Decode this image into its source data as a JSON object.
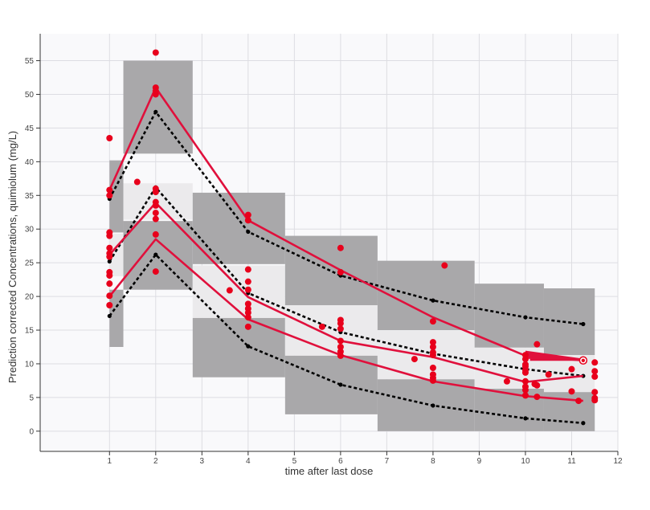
{
  "chart_data": {
    "type": "scatter",
    "xlabel": "time after last dose",
    "ylabel": "Prediction corrected Concentrations, quimiolum (mg/L)",
    "xlim": [
      -0.5,
      12
    ],
    "ylim": [
      -3,
      59
    ],
    "x_ticks": [
      1,
      2,
      3,
      4,
      5,
      6,
      7,
      8,
      9,
      10,
      11,
      12
    ],
    "y_ticks": [
      0,
      5,
      10,
      15,
      20,
      25,
      30,
      35,
      40,
      45,
      50,
      55
    ],
    "grid": true,
    "colors": {
      "observed": "#e8001c",
      "percentile_line": "#e0103c",
      "prediction_line": "#000000",
      "outer_band": "#a9a8aa",
      "median_band": "#ebeaec",
      "plot_background": "#f9f9fb"
    },
    "bands": [
      {
        "x0": 1,
        "x1": 1.3,
        "outer_upper": [
          29.5,
          40.2
        ],
        "median": [
          23.0,
          29.3
        ],
        "outer_lower": [
          12.5,
          21.0
        ]
      },
      {
        "x0": 1.3,
        "x1": 2.8,
        "outer_upper": [
          41.2,
          55.0
        ],
        "median": [
          31.4,
          36.8
        ],
        "outer_lower": [
          21.0,
          31.2
        ]
      },
      {
        "x0": 2.8,
        "x1": 4.8,
        "outer_upper": [
          24.8,
          35.4
        ],
        "median": [
          16.8,
          24.6
        ],
        "outer_lower": [
          8.0,
          16.8
        ]
      },
      {
        "x0": 4.8,
        "x1": 6.8,
        "outer_upper": [
          18.7,
          29.0
        ],
        "median": [
          11.2,
          18.7
        ],
        "outer_lower": [
          2.5,
          11.2
        ]
      },
      {
        "x0": 6.8,
        "x1": 8.9,
        "outer_upper": [
          15.0,
          25.3
        ],
        "median": [
          7.7,
          15.0
        ],
        "outer_lower": [
          0.0,
          7.7
        ]
      },
      {
        "x0": 8.9,
        "x1": 10.4,
        "outer_upper": [
          12.4,
          21.9
        ],
        "median": [
          6.3,
          12.4
        ],
        "outer_lower": [
          0.0,
          6.3
        ]
      },
      {
        "x0": 10.4,
        "x1": 11.5,
        "outer_upper": [
          11.3,
          21.2
        ],
        "median": [
          5.8,
          11.3
        ],
        "outer_lower": [
          0.0,
          5.8
        ]
      }
    ],
    "prediction_x": [
      1,
      2,
      4,
      6,
      8,
      10,
      11.25
    ],
    "prediction_upper": [
      34.5,
      47.4,
      29.6,
      23.1,
      19.4,
      16.9,
      15.9
    ],
    "prediction_median": [
      25.2,
      36.2,
      20.5,
      14.7,
      11.5,
      9.2,
      8.2
    ],
    "prediction_lower": [
      17.1,
      26.2,
      12.6,
      6.9,
      3.8,
      1.9,
      1.2
    ],
    "observed_x": [
      1,
      2,
      4,
      6,
      8,
      10,
      11.25
    ],
    "observed_upper": [
      35.8,
      51.0,
      31.3,
      23.9,
      16.9,
      11.2,
      10.5
    ],
    "observed_median": [
      26.2,
      33.9,
      19.9,
      13.4,
      11.0,
      7.3,
      8.2
    ],
    "observed_lower": [
      20.0,
      28.5,
      16.6,
      11.3,
      7.4,
      5.2,
      4.5
    ],
    "observations": [
      {
        "x": 1.0,
        "y": 43.5
      },
      {
        "x": 1.0,
        "y": 35.8
      },
      {
        "x": 1.0,
        "y": 35.0
      },
      {
        "x": 1.0,
        "y": 29.5
      },
      {
        "x": 1.0,
        "y": 29.0
      },
      {
        "x": 1.0,
        "y": 27.2
      },
      {
        "x": 1.0,
        "y": 26.4
      },
      {
        "x": 1.0,
        "y": 25.9
      },
      {
        "x": 1.0,
        "y": 23.6
      },
      {
        "x": 1.0,
        "y": 23.1
      },
      {
        "x": 1.0,
        "y": 21.9
      },
      {
        "x": 1.0,
        "y": 20.1
      },
      {
        "x": 1.0,
        "y": 18.7
      },
      {
        "x": 1.6,
        "y": 37.0
      },
      {
        "x": 2.0,
        "y": 56.2
      },
      {
        "x": 2.0,
        "y": 51.0
      },
      {
        "x": 2.0,
        "y": 50.5
      },
      {
        "x": 2.0,
        "y": 50.0
      },
      {
        "x": 2.0,
        "y": 36.0
      },
      {
        "x": 2.0,
        "y": 35.5
      },
      {
        "x": 2.0,
        "y": 34.0
      },
      {
        "x": 2.0,
        "y": 33.5
      },
      {
        "x": 2.0,
        "y": 32.4
      },
      {
        "x": 2.0,
        "y": 31.5
      },
      {
        "x": 2.0,
        "y": 29.2
      },
      {
        "x": 2.0,
        "y": 23.7
      },
      {
        "x": 3.6,
        "y": 20.9
      },
      {
        "x": 4.0,
        "y": 32.1
      },
      {
        "x": 4.0,
        "y": 31.3
      },
      {
        "x": 4.0,
        "y": 24.0
      },
      {
        "x": 4.0,
        "y": 22.2
      },
      {
        "x": 4.0,
        "y": 21.0
      },
      {
        "x": 4.0,
        "y": 18.9
      },
      {
        "x": 4.0,
        "y": 18.2
      },
      {
        "x": 4.0,
        "y": 17.6
      },
      {
        "x": 4.0,
        "y": 16.9
      },
      {
        "x": 4.0,
        "y": 15.5
      },
      {
        "x": 5.6,
        "y": 15.5
      },
      {
        "x": 6.0,
        "y": 27.2
      },
      {
        "x": 6.0,
        "y": 23.6
      },
      {
        "x": 6.0,
        "y": 16.5
      },
      {
        "x": 6.0,
        "y": 16.0
      },
      {
        "x": 6.0,
        "y": 15.2
      },
      {
        "x": 6.0,
        "y": 13.4
      },
      {
        "x": 6.0,
        "y": 12.5
      },
      {
        "x": 6.0,
        "y": 11.8
      },
      {
        "x": 6.0,
        "y": 11.2
      },
      {
        "x": 7.6,
        "y": 10.7
      },
      {
        "x": 8.25,
        "y": 24.6
      },
      {
        "x": 8.0,
        "y": 16.3
      },
      {
        "x": 8.0,
        "y": 13.2
      },
      {
        "x": 8.0,
        "y": 12.5
      },
      {
        "x": 8.0,
        "y": 11.7
      },
      {
        "x": 8.0,
        "y": 11.3
      },
      {
        "x": 8.0,
        "y": 9.4
      },
      {
        "x": 8.0,
        "y": 8.4
      },
      {
        "x": 8.0,
        "y": 7.9
      },
      {
        "x": 8.0,
        "y": 7.5
      },
      {
        "x": 9.6,
        "y": 7.4
      },
      {
        "x": 10.0,
        "y": 11.3
      },
      {
        "x": 10.0,
        "y": 10.7
      },
      {
        "x": 10.0,
        "y": 9.9
      },
      {
        "x": 10.0,
        "y": 9.6
      },
      {
        "x": 10.0,
        "y": 9.1
      },
      {
        "x": 10.0,
        "y": 8.7
      },
      {
        "x": 10.0,
        "y": 7.4
      },
      {
        "x": 10.0,
        "y": 6.6
      },
      {
        "x": 10.0,
        "y": 6.1
      },
      {
        "x": 10.0,
        "y": 5.3
      },
      {
        "x": 10.2,
        "y": 7.0
      },
      {
        "x": 10.25,
        "y": 12.9
      },
      {
        "x": 10.25,
        "y": 6.8
      },
      {
        "x": 10.25,
        "y": 5.1
      },
      {
        "x": 10.5,
        "y": 8.4
      },
      {
        "x": 11.0,
        "y": 9.2
      },
      {
        "x": 11.0,
        "y": 5.9
      },
      {
        "x": 11.15,
        "y": 4.5
      },
      {
        "x": 11.25,
        "y": 10.6
      },
      {
        "x": 11.5,
        "y": 10.2
      },
      {
        "x": 11.5,
        "y": 8.9
      },
      {
        "x": 11.5,
        "y": 8.1
      },
      {
        "x": 11.5,
        "y": 5.8
      },
      {
        "x": 11.5,
        "y": 4.9
      },
      {
        "x": 11.5,
        "y": 4.6
      }
    ],
    "fan_lines": [
      {
        "from": [
          10.0,
          11.8
        ],
        "to": [
          11.25,
          10.6
        ]
      },
      {
        "from": [
          10.0,
          11.5
        ],
        "to": [
          11.25,
          10.6
        ]
      },
      {
        "from": [
          10.0,
          11.2
        ],
        "to": [
          11.25,
          10.6
        ]
      },
      {
        "from": [
          10.05,
          10.9
        ],
        "to": [
          11.25,
          10.6
        ]
      },
      {
        "from": [
          10.1,
          10.6
        ],
        "to": [
          11.25,
          10.6
        ]
      }
    ],
    "highlight_point": {
      "x": 11.25,
      "y": 10.5
    }
  }
}
